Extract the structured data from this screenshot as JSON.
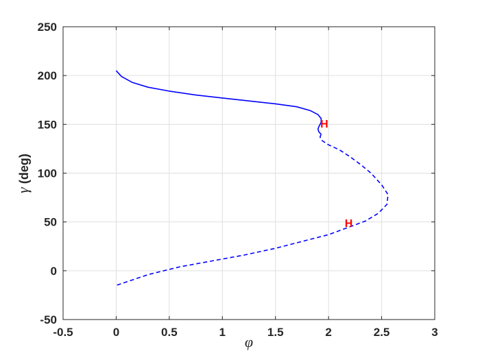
{
  "chart_data": {
    "type": "line",
    "xlabel": "φ",
    "ylabel_symbol": "γ",
    "ylabel_text": " (deg)",
    "xlim": [
      -0.5,
      3
    ],
    "ylim": [
      -50,
      250
    ],
    "xticks": [
      -0.5,
      0,
      0.5,
      1,
      1.5,
      2,
      2.5,
      3
    ],
    "yticks": [
      -50,
      0,
      50,
      100,
      150,
      200,
      250
    ],
    "xtick_labels": [
      "-0.5",
      "0",
      "0.5",
      "1",
      "1.5",
      "2",
      "2.5",
      "3"
    ],
    "ytick_labels": [
      "-50",
      "0",
      "50",
      "100",
      "150",
      "200",
      "250"
    ],
    "grid": true,
    "series": [
      {
        "style": "solid",
        "color": "#0000ff",
        "points": [
          [
            0.0,
            205
          ],
          [
            0.05,
            199
          ],
          [
            0.15,
            193
          ],
          [
            0.3,
            188
          ],
          [
            0.5,
            184
          ],
          [
            0.75,
            180
          ],
          [
            1.0,
            177
          ],
          [
            1.25,
            174
          ],
          [
            1.5,
            171
          ],
          [
            1.7,
            168
          ],
          [
            1.83,
            164
          ],
          [
            1.9,
            160
          ],
          [
            1.93,
            156
          ],
          [
            1.93,
            152
          ],
          [
            1.91,
            148
          ],
          [
            1.9,
            145
          ],
          [
            1.91,
            142
          ],
          [
            1.93,
            140
          ]
        ]
      },
      {
        "style": "dashed",
        "color": "#0000ff",
        "points": [
          [
            1.93,
            140
          ],
          [
            1.92,
            137
          ],
          [
            1.93,
            134
          ],
          [
            2.0,
            129
          ],
          [
            2.1,
            124
          ],
          [
            2.2,
            117
          ],
          [
            2.3,
            109
          ],
          [
            2.4,
            100
          ],
          [
            2.5,
            88
          ],
          [
            2.56,
            78
          ],
          [
            2.55,
            68
          ],
          [
            2.47,
            59
          ],
          [
            2.35,
            51
          ],
          [
            2.2,
            45
          ],
          [
            2.0,
            37
          ],
          [
            1.75,
            30
          ],
          [
            1.5,
            23
          ],
          [
            1.2,
            16
          ],
          [
            0.9,
            10
          ],
          [
            0.6,
            4
          ],
          [
            0.3,
            -4
          ],
          [
            0.0,
            -15
          ]
        ]
      }
    ],
    "markers": [
      {
        "label": "H",
        "x": 1.96,
        "y": 151,
        "color": "#ff0000"
      },
      {
        "label": "H",
        "x": 2.19,
        "y": 49,
        "color": "#ff0000"
      }
    ]
  }
}
